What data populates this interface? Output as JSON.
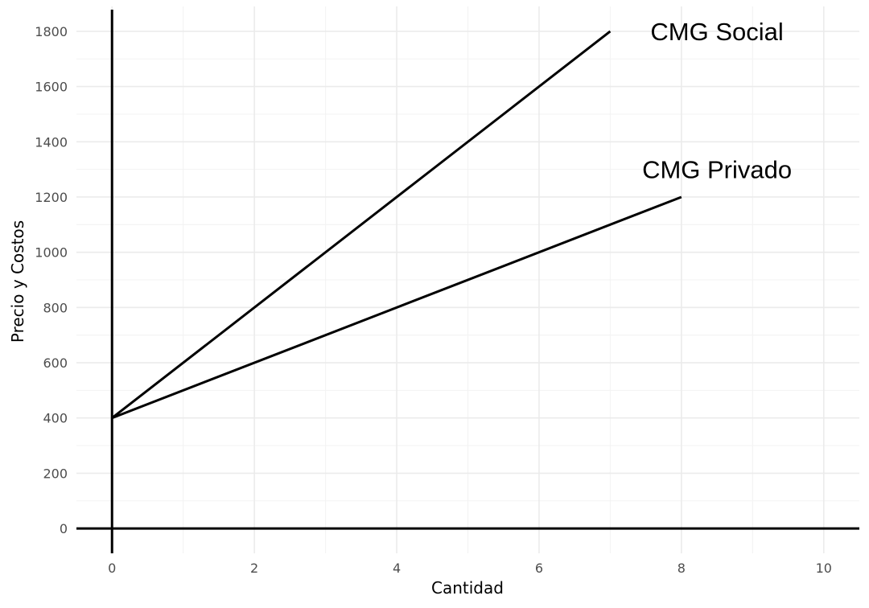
{
  "chart_data": {
    "type": "line",
    "title": "",
    "xlabel": "Cantidad",
    "ylabel": "Precio y Costos",
    "xlim": [
      -0.5,
      10.5
    ],
    "ylim": [
      -90,
      1890
    ],
    "x_ticks": [
      0,
      2,
      4,
      6,
      8,
      10
    ],
    "y_ticks": [
      0,
      200,
      400,
      600,
      800,
      1000,
      1200,
      1400,
      1600,
      1800
    ],
    "x_tick_labels": [
      "0",
      "2",
      "4",
      "6",
      "8",
      "10"
    ],
    "y_tick_labels": [
      "0",
      "200",
      "400",
      "600",
      "800",
      "1000",
      "1200",
      "1400",
      "1600",
      "1800"
    ],
    "grid": true,
    "series": [
      {
        "name": "CMG Social",
        "x": [
          0,
          7
        ],
        "y": [
          400,
          1800
        ],
        "label_at": [
          8.5,
          1800
        ]
      },
      {
        "name": "CMG Privado",
        "x": [
          0,
          8
        ],
        "y": [
          400,
          1200
        ],
        "label_at": [
          8.5,
          1300
        ]
      }
    ]
  }
}
